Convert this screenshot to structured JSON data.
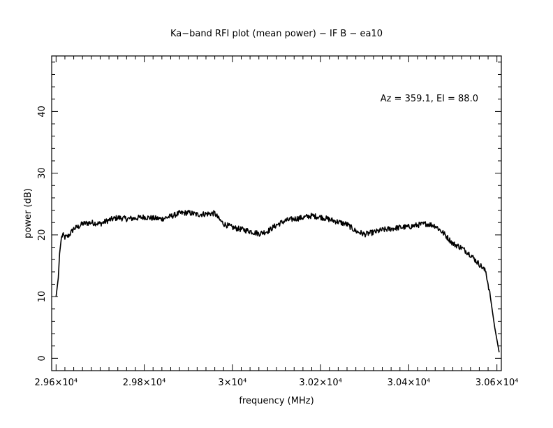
{
  "chart_data": {
    "type": "line",
    "title": "Ka−band RFI plot (mean power) − IF B − ea10",
    "xlabel": "frequency (MHz)",
    "ylabel": "power (dB)",
    "annotation": "Az = 359.1, El = 88.0",
    "xlim": [
      29590,
      30610
    ],
    "ylim": [
      -2,
      49
    ],
    "x_ticks": [
      {
        "value": 29600,
        "label": "2.96×10⁴"
      },
      {
        "value": 29800,
        "label": "2.98×10⁴"
      },
      {
        "value": 30000,
        "label": "3×10⁴"
      },
      {
        "value": 30200,
        "label": "3.02×10⁴"
      },
      {
        "value": 30400,
        "label": "3.04×10⁴"
      },
      {
        "value": 30600,
        "label": "3.06×10⁴"
      }
    ],
    "y_ticks": [
      {
        "value": 0,
        "label": "0"
      },
      {
        "value": 10,
        "label": "10"
      },
      {
        "value": 20,
        "label": "20"
      },
      {
        "value": 30,
        "label": "30"
      },
      {
        "value": 40,
        "label": "40"
      }
    ],
    "grid": false,
    "series": [
      {
        "color": "#000000",
        "x": [
          29600,
          29605,
          29608,
          29612,
          29615,
          29620,
          29625,
          29630,
          29640,
          29650,
          29660,
          29680,
          29700,
          29720,
          29740,
          29760,
          29780,
          29800,
          29820,
          29840,
          29860,
          29880,
          29900,
          29920,
          29940,
          29960,
          29970,
          29980,
          30000,
          30020,
          30040,
          30060,
          30080,
          30100,
          30120,
          30140,
          30160,
          30180,
          30200,
          30220,
          30240,
          30260,
          30280,
          30300,
          30320,
          30340,
          30360,
          30380,
          30400,
          30420,
          30440,
          30460,
          30480,
          30500,
          30520,
          30540,
          30555,
          30565,
          30575,
          30585,
          30595,
          30605
        ],
        "y": [
          10,
          13,
          17,
          19.5,
          20,
          19.6,
          19.7,
          20,
          21,
          21.3,
          21.8,
          22,
          21.8,
          22.4,
          22.8,
          22.6,
          22.7,
          22.9,
          22.7,
          22.6,
          23,
          23.5,
          23.6,
          23.3,
          23.4,
          23.5,
          22.5,
          21.8,
          21.2,
          20.9,
          20.6,
          20.2,
          20.6,
          21.6,
          22.3,
          22.6,
          22.8,
          23.1,
          22.9,
          22.5,
          22.1,
          21.7,
          20.6,
          20.1,
          20.4,
          20.8,
          21,
          21.2,
          21.3,
          21.6,
          21.8,
          21.5,
          20.2,
          18.6,
          17.9,
          16.8,
          15.6,
          14.9,
          14,
          10,
          5,
          1
        ]
      }
    ]
  }
}
